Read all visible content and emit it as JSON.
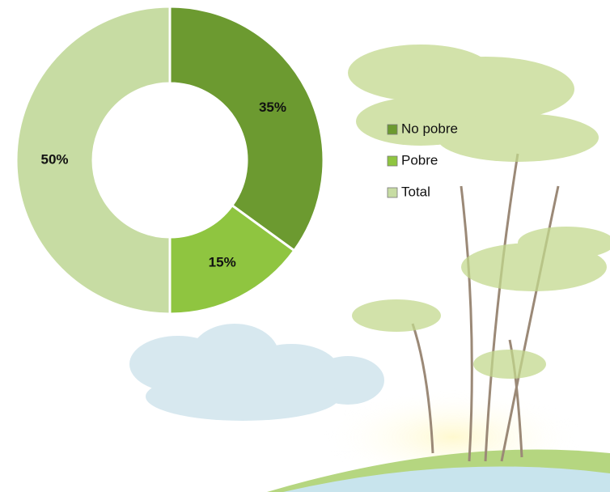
{
  "chart_data": {
    "type": "pie",
    "categories": [
      "No pobre",
      "Pobre",
      "Total"
    ],
    "values": [
      35,
      15,
      50
    ],
    "value_labels": [
      "35%",
      "15%",
      "50%"
    ],
    "colors": [
      "#6c9a30",
      "#8fc540",
      "#c7dca3"
    ],
    "donut": true,
    "legend": "right"
  }
}
